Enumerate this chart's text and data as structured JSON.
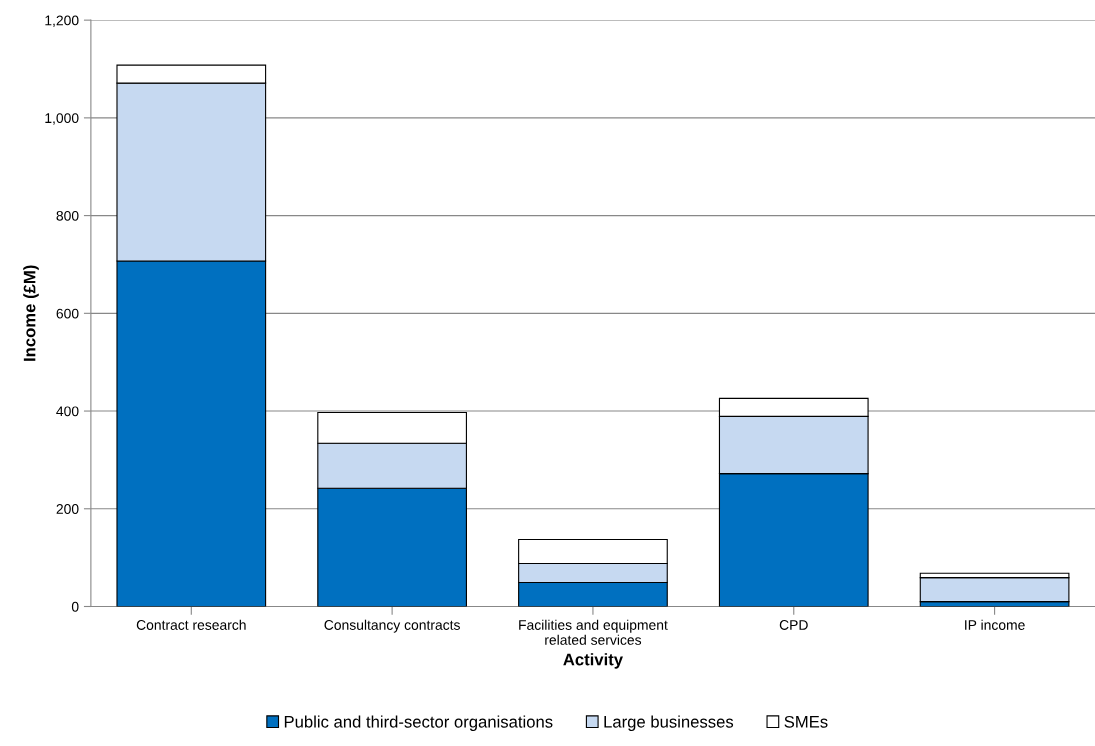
{
  "chart_data": {
    "type": "bar",
    "stacked": true,
    "xlabel": "Activity",
    "ylabel": "Income (£M)",
    "categories": [
      "Contract research",
      "Consultancy contracts",
      "Facilities and equipment\nrelated services",
      "CPD",
      "IP income"
    ],
    "series": [
      {
        "name": "Public and third-sector organisations",
        "color": "#0070c0",
        "values": [
          707,
          242,
          49,
          272,
          10
        ]
      },
      {
        "name": "Large businesses",
        "color": "#c6d9f1",
        "values": [
          364,
          92,
          39,
          117,
          49
        ]
      },
      {
        "name": "SMEs",
        "color": "#ffffff",
        "values": [
          37,
          63,
          49,
          37,
          9
        ]
      }
    ],
    "ylim": [
      0,
      1200
    ],
    "yticks": [
      0,
      200,
      400,
      600,
      800,
      {
        "value": 1000,
        "label": "1,000"
      },
      {
        "value": 1200,
        "label": "1,200"
      }
    ],
    "grid": "y",
    "legend": "bottom"
  }
}
